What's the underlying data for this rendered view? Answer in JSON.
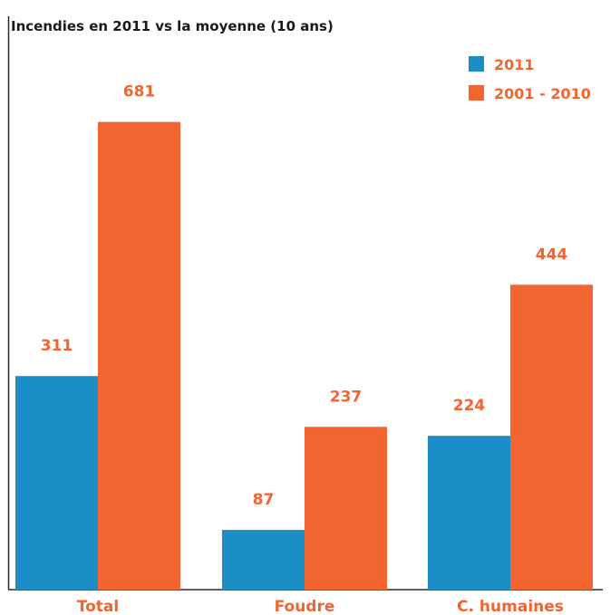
{
  "chart_data": {
    "type": "bar",
    "title": "Incendies en 2011 vs la moyenne (10 ans)",
    "xlabel": "",
    "ylabel": "",
    "categories": [
      "Total",
      "Foudre",
      "C. humaines"
    ],
    "series": [
      {
        "name": "2011",
        "values": [
          311,
          87,
          224
        ],
        "color": "#1b8ec8"
      },
      {
        "name": "2001 - 2010",
        "values": [
          681,
          237,
          444
        ],
        "color": "#f26531"
      }
    ],
    "ylim": [
      0,
      790
    ],
    "grid": false,
    "legend_position": "top-right",
    "value_label_color": "#f26531",
    "category_label_color": "#f26531"
  }
}
